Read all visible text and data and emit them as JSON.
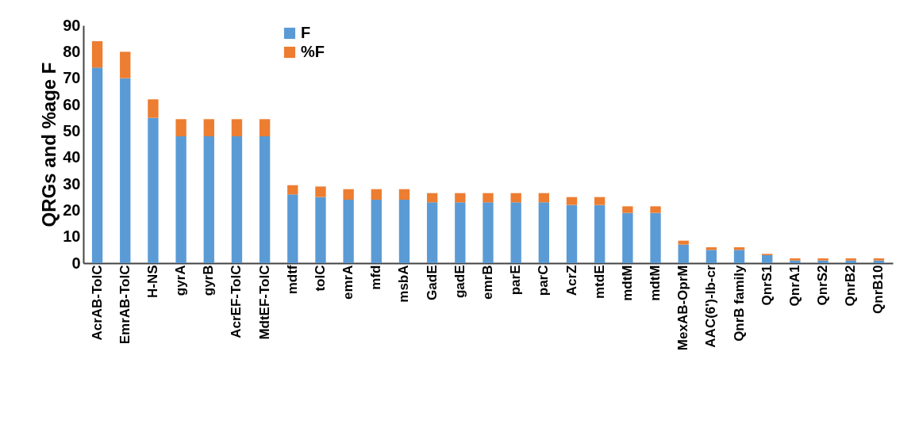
{
  "chart_data": {
    "type": "bar",
    "ylabel": "QRGs and %age F",
    "stacked": true,
    "legend": "top left",
    "categories": [
      "AcrAB-TolC",
      "EmrAB-TolC",
      "H-NS",
      "gyrA",
      "gyrB",
      "AcrEF-TolC",
      "MdtEF-TolC",
      "mdtf",
      "tolC",
      "emrA",
      "mfd",
      "msbA",
      "GadE",
      "gadE",
      "emrB",
      "parE",
      "parC",
      "AcrZ",
      "mtdE",
      "mdtM",
      "mdtM",
      "MexAB-OprM",
      "AAC(6')-Ib-cr",
      "QnrB family",
      "QnrS1",
      "QnrA1",
      "QnrS2",
      "QnrB2",
      "QnrB10"
    ],
    "series": [
      {
        "name": "F",
        "color": "#5b9bd5",
        "values": [
          74,
          70,
          55,
          48,
          48,
          48,
          48,
          26,
          25,
          24,
          24,
          24,
          23,
          23,
          23,
          23,
          23,
          22,
          22,
          19,
          19,
          7,
          5,
          5,
          3,
          1,
          1,
          1,
          1
        ]
      },
      {
        "name": "%F",
        "color": "#ed7d31",
        "values": [
          10,
          10,
          7,
          6.5,
          6.5,
          6.5,
          6.5,
          3.5,
          4,
          4,
          4,
          4,
          3.5,
          3.5,
          3.5,
          3.5,
          3.5,
          3,
          3,
          2.5,
          2.5,
          1.5,
          1,
          1,
          0.5,
          0.8,
          0.8,
          0.8,
          0.8
        ]
      }
    ],
    "ylim": [
      0,
      90
    ],
    "yticks": [
      0,
      10,
      20,
      30,
      40,
      50,
      60,
      70,
      80,
      90
    ],
    "grid": false
  }
}
